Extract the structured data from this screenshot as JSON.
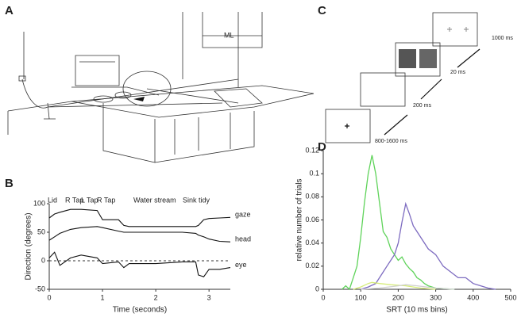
{
  "panel_labels": [
    "A",
    "B",
    "C",
    "D"
  ],
  "panel_a": {
    "label": "ML"
  },
  "panel_c": {
    "timings": [
      "800-1600 ms",
      "200 ms",
      "20 ms",
      "1000 ms"
    ]
  },
  "chart_data": [
    {
      "type": "line",
      "x_label": "Time (seconds)",
      "y_label": "Direction (degrees)",
      "annotations": [
        "Lid",
        "R Tap",
        "L Tap",
        "R Tap",
        "Water stream",
        "Sink tidy"
      ],
      "x": [
        0,
        0.1,
        0.2,
        0.4,
        0.6,
        0.9,
        1.0,
        1.3,
        1.4,
        1.5,
        2.0,
        2.5,
        2.75,
        2.8,
        2.9,
        3.0,
        3.2,
        3.4
      ],
      "series": [
        {
          "name": "gaze",
          "color": "#111111",
          "values": [
            75,
            82,
            85,
            90,
            90,
            88,
            72,
            72,
            62,
            60,
            60,
            60,
            60,
            62,
            72,
            74,
            75,
            76
          ]
        },
        {
          "name": "head",
          "color": "#111111",
          "values": [
            36,
            42,
            48,
            55,
            58,
            60,
            58,
            52,
            50,
            50,
            50,
            50,
            48,
            45,
            42,
            38,
            34,
            33
          ]
        },
        {
          "name": "eye",
          "color": "#111111",
          "values": [
            5,
            15,
            -8,
            5,
            10,
            5,
            -5,
            -2,
            -12,
            -5,
            -5,
            -2,
            -2,
            -25,
            -28,
            -15,
            -15,
            -12
          ]
        }
      ],
      "xlim": [
        0,
        3.4
      ],
      "xticks": [
        0,
        1,
        2,
        3
      ],
      "ylim": [
        -50,
        100
      ],
      "yticks": [
        -50,
        0,
        50,
        100
      ]
    },
    {
      "type": "line",
      "x_label": "SRT (10 ms bins)",
      "y_label": "relative number of trials",
      "series": [
        {
          "color": "#5fd35a",
          "x": [
            50,
            60,
            70,
            80,
            90,
            100,
            110,
            120,
            130,
            140,
            150,
            160,
            170,
            180,
            190,
            200,
            210,
            220,
            230,
            240,
            250,
            260,
            270,
            280,
            300,
            350
          ],
          "values": [
            0,
            0.003,
            0,
            0.01,
            0.02,
            0.045,
            0.075,
            0.1,
            0.116,
            0.1,
            0.075,
            0.05,
            0.045,
            0.035,
            0.03,
            0.025,
            0.028,
            0.022,
            0.018,
            0.015,
            0.01,
            0.008,
            0.005,
            0.003,
            0.001,
            0
          ]
        },
        {
          "color": "#7d6bc0",
          "x": [
            100,
            120,
            140,
            160,
            170,
            180,
            190,
            200,
            210,
            220,
            230,
            240,
            250,
            260,
            280,
            300,
            320,
            340,
            360,
            380,
            400,
            420,
            440,
            460
          ],
          "values": [
            0,
            0.002,
            0.005,
            0.015,
            0.02,
            0.025,
            0.03,
            0.04,
            0.058,
            0.074,
            0.065,
            0.055,
            0.05,
            0.045,
            0.035,
            0.03,
            0.02,
            0.015,
            0.01,
            0.01,
            0.005,
            0.003,
            0.001,
            0
          ]
        },
        {
          "color": "#d6ec7a",
          "x": [
            80,
            100,
            120,
            130,
            150,
            180,
            220,
            260,
            300
          ],
          "values": [
            0,
            0.002,
            0.005,
            0.006,
            0.005,
            0.004,
            0.003,
            0.001,
            0
          ]
        },
        {
          "color": "#d0d0d0",
          "x": [
            100,
            150,
            200,
            220,
            250,
            300,
            350
          ],
          "values": [
            0,
            0.001,
            0.003,
            0.004,
            0.003,
            0.001,
            0
          ]
        }
      ],
      "xlim": [
        0,
        500
      ],
      "xticks": [
        0,
        100,
        200,
        300,
        400,
        500
      ],
      "ylim": [
        0,
        0.12
      ],
      "yticks": [
        0,
        0.02,
        0.04,
        0.06,
        0.08,
        0.1,
        0.12
      ]
    }
  ]
}
